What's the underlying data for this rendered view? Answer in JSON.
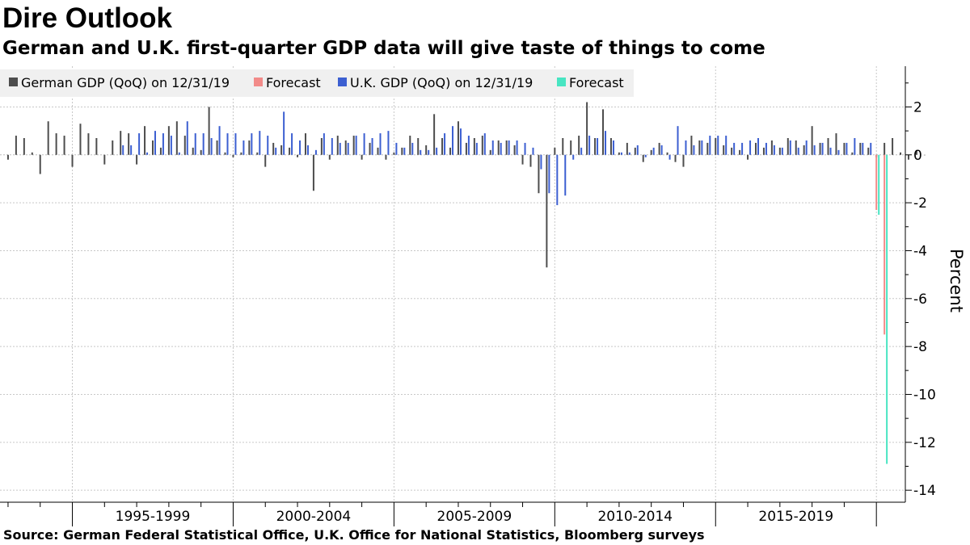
{
  "title": "Dire Outlook",
  "subtitle": "German and U.K. first-quarter GDP data will give taste of things to come",
  "source": "Source: German Federal Statistical Office, U.K. Office for National Statistics, Bloomberg surveys",
  "colors": {
    "german": "#4d4d4d",
    "uk": "#3c5fd1",
    "german_forecast": "#f28b89",
    "uk_forecast": "#48e5c2",
    "grid": "#c8c8c8",
    "legend_bg": "#f0f0f0"
  },
  "chart_data": {
    "type": "bar",
    "title": "Dire Outlook",
    "subtitle": "German and U.K. first-quarter GDP data will give taste of things to come",
    "ylabel": "Percent",
    "xlabel": "",
    "ylim": [
      -14.5,
      3.7
    ],
    "yticks": [
      2,
      0,
      -2,
      -4,
      -6,
      -8,
      -10,
      -12,
      -14
    ],
    "ytick_labels": [
      "2",
      "0",
      "-2",
      "-4",
      "-6",
      "-8",
      "-10",
      "-12",
      "-14"
    ],
    "grid": true,
    "y_axis_position": "right",
    "legend_position": "top-left",
    "legend": [
      {
        "label": "German GDP (QoQ) on 12/31/19",
        "color": "#4d4d4d"
      },
      {
        "label": "Forecast",
        "color": "#f28b89"
      },
      {
        "label": "U.K. GDP (QoQ) on 12/31/19",
        "color": "#3c5fd1"
      },
      {
        "label": "Forecast",
        "color": "#48e5c2"
      }
    ],
    "x_range_quarters": [
      1992.75,
      2020.9
    ],
    "period_labels": [
      {
        "label": "1995-1999",
        "center": 1997.5
      },
      {
        "label": "2000-2004",
        "center": 2002.5
      },
      {
        "label": "2005-2009",
        "center": 2007.5
      },
      {
        "label": "2010-2014",
        "center": 2012.5
      },
      {
        "label": "2015-2019",
        "center": 2017.5
      }
    ],
    "major_ticks": [
      1995,
      2000,
      2005,
      2010,
      2015,
      2020
    ],
    "start_quarter": "1993Q1",
    "series": [
      {
        "name": "German GDP (QoQ) on 12/31/19",
        "color": "#4d4d4d",
        "values": [
          -0.2,
          0.8,
          0.7,
          0.1,
          -0.8,
          1.4,
          0.9,
          0.8,
          -0.5,
          1.3,
          0.9,
          0.7,
          -0.4,
          0.6,
          1.0,
          0.9,
          -0.4,
          1.2,
          0.6,
          0.3,
          1.2,
          1.4,
          0.8,
          0.3,
          0.2,
          2.0,
          0.6,
          0.1,
          -0.1,
          0.1,
          0.6,
          0.1,
          -0.5,
          0.5,
          0.4,
          0.3,
          -0.1,
          0.9,
          -1.5,
          0.7,
          -0.2,
          0.8,
          0.6,
          0.8,
          -0.2,
          0.5,
          0.3,
          -0.2,
          0.1,
          0.3,
          0.8,
          0.7,
          0.4,
          1.7,
          0.7,
          0.3,
          1.4,
          0.5,
          0.7,
          0.8,
          0.2,
          0.6,
          0.6,
          0.4,
          -0.4,
          -0.5,
          -1.6,
          -4.7,
          0.3,
          0.7,
          0.6,
          0.8,
          2.2,
          0.7,
          1.9,
          0.7,
          0.1,
          0.5,
          0.3,
          -0.3,
          0.2,
          0.5,
          0.1,
          -0.3,
          -0.5,
          0.8,
          0.6,
          0.5,
          0.7,
          0.4,
          0.3,
          0.2,
          -0.2,
          0.5,
          0.3,
          0.6,
          0.3,
          0.7,
          0.6,
          0.4,
          1.2,
          0.5,
          0.7,
          0.9,
          0.5,
          0.1,
          0.5,
          0.3,
          -0.1,
          0.5,
          0.7,
          0.1,
          -0.2,
          0.2,
          0.0
        ]
      },
      {
        "name": "U.K. GDP (QoQ) on 12/31/19",
        "color": "#3c5fd1",
        "values": [
          0.4,
          0.4,
          0.9,
          0.1,
          1.0,
          0.9,
          0.8,
          0.1,
          1.4,
          0.9,
          0.9,
          0.7,
          1.2,
          0.9,
          0.9,
          0.6,
          0.9,
          1.0,
          0.8,
          0.3,
          1.8,
          0.9,
          0.6,
          0.4,
          0.2,
          0.9,
          0.7,
          0.5,
          0.5,
          0.8,
          0.9,
          0.7,
          0.9,
          1.0,
          0.5,
          0.3,
          0.5,
          0.2,
          0.2,
          0.3,
          0.9,
          1.2,
          1.1,
          0.8,
          0.5,
          0.9,
          0.6,
          0.5,
          0.6,
          0.6,
          0.5,
          0.3,
          -0.6,
          -1.6,
          -2.1,
          -1.7,
          -0.2,
          0.3,
          0.8,
          0.7,
          1.0,
          0.6,
          0.1,
          0.1,
          0.4,
          -0.1,
          0.3,
          0.4,
          -0.2,
          1.2,
          0.6,
          0.4,
          0.6,
          0.8,
          0.8,
          0.8,
          0.5,
          0.5,
          0.6,
          0.7,
          0.5,
          0.4,
          0.3,
          0.6,
          0.3,
          0.6,
          0.4,
          0.5,
          0.3,
          0.2,
          0.5,
          0.7,
          0.5,
          0.5
        ],
        "start_quarter": "1996Q3"
      },
      {
        "name": "Forecast",
        "color": "#f28b89",
        "x": "2020Q1",
        "values": [
          -2.3
        ]
      },
      {
        "name": "Forecast",
        "color": "#f28b89",
        "x": "2020Q2",
        "values": [
          -7.5
        ]
      },
      {
        "name": "Forecast",
        "color": "#48e5c2",
        "x": "2020Q1",
        "values": [
          -2.5
        ]
      },
      {
        "name": "Forecast",
        "color": "#48e5c2",
        "x": "2020Q2",
        "values": [
          -12.9
        ]
      }
    ]
  }
}
